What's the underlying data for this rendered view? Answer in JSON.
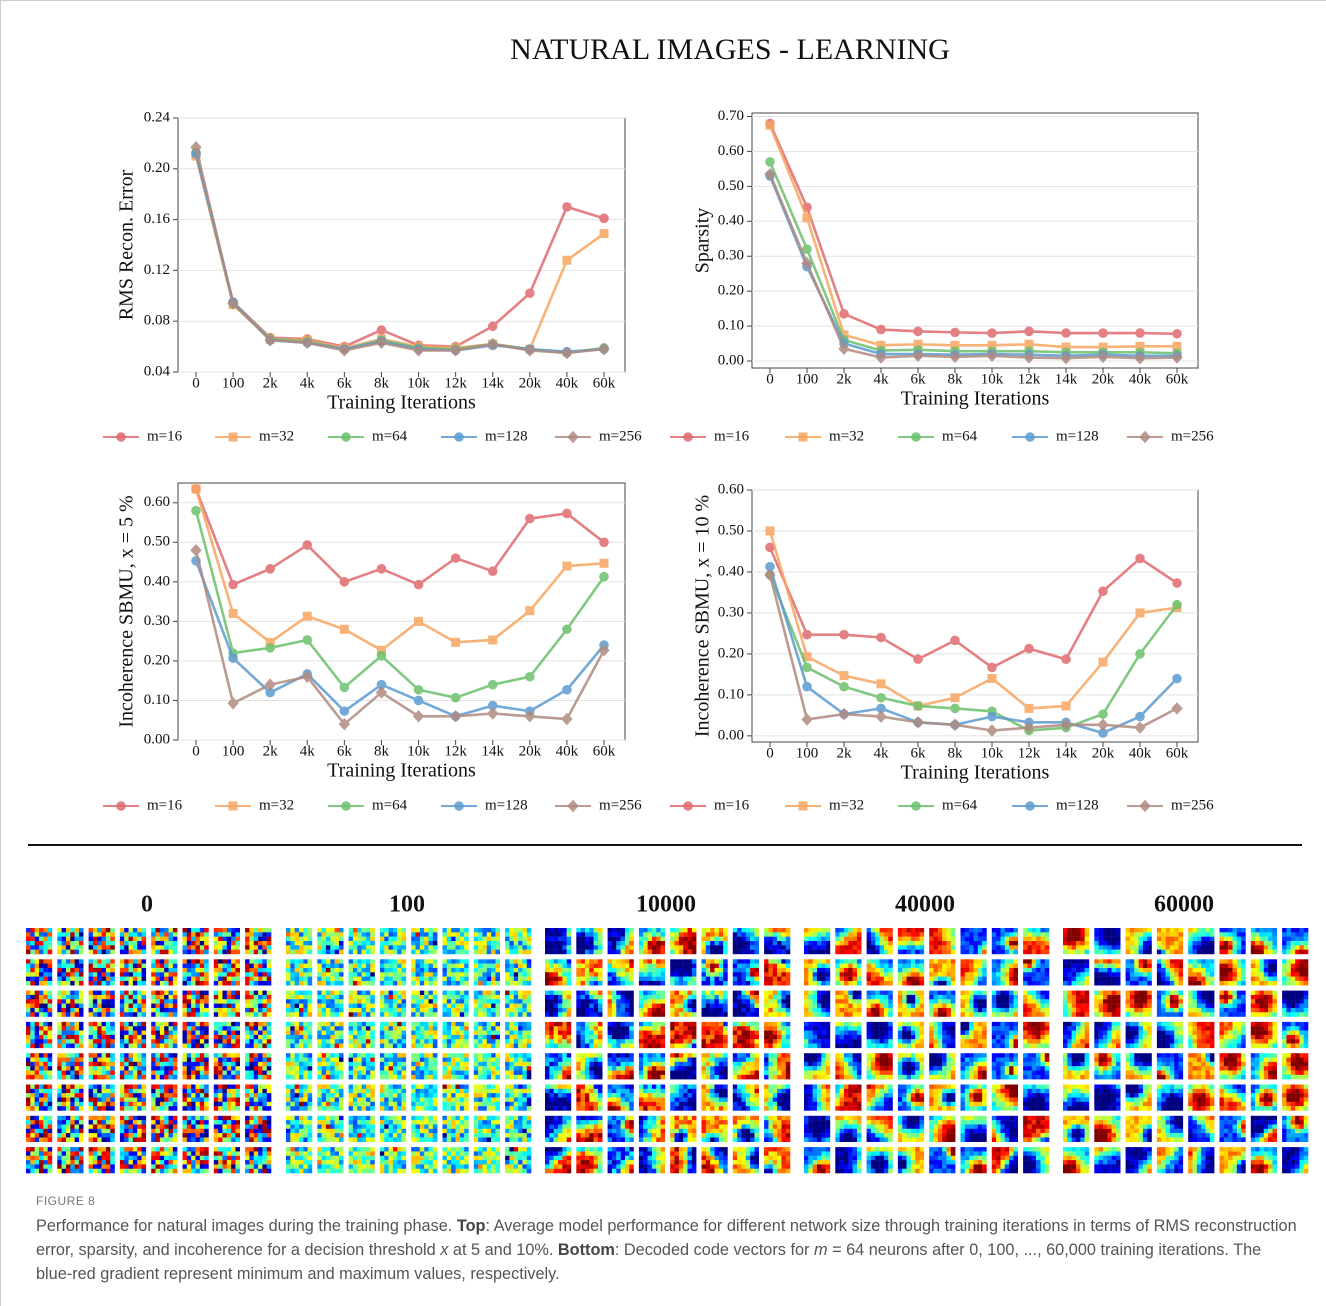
{
  "header": {
    "title": "NATURAL IMAGES - LEARNING"
  },
  "chart_data": [
    {
      "type": "line",
      "x_label": "Training Iterations",
      "y_label": "RMS Recon. Error",
      "categories": [
        "0",
        "100",
        "2k",
        "4k",
        "6k",
        "8k",
        "10k",
        "12k",
        "14k",
        "20k",
        "40k",
        "60k"
      ],
      "ylim": [
        0.04,
        0.24
      ],
      "yticks": [
        0.04,
        0.08,
        0.12,
        0.16,
        {
          "value": 0.2,
          "label": "0.20"
        },
        0.24
      ],
      "grid": true,
      "series": [
        {
          "name": "m=16",
          "color": "#e06a6e",
          "marker": "circle",
          "values": [
            0.211,
            0.095,
            0.067,
            0.066,
            0.06,
            0.073,
            0.061,
            0.06,
            0.076,
            0.102,
            0.17,
            0.161
          ]
        },
        {
          "name": "m=32",
          "color": "#f7a560",
          "marker": "square",
          "values": [
            0.21,
            0.093,
            0.066,
            0.065,
            0.059,
            0.066,
            0.06,
            0.059,
            0.062,
            0.058,
            0.128,
            0.149
          ]
        },
        {
          "name": "m=64",
          "color": "#6cc06c",
          "marker": "circle",
          "values": [
            0.213,
            0.094,
            0.066,
            0.064,
            0.058,
            0.065,
            0.059,
            0.058,
            0.062,
            0.058,
            0.055,
            0.059
          ]
        },
        {
          "name": "m=128",
          "color": "#5b9bd0",
          "marker": "circle",
          "values": [
            0.212,
            0.095,
            0.065,
            0.063,
            0.058,
            0.064,
            0.058,
            0.057,
            0.061,
            0.058,
            0.056,
            0.058
          ]
        },
        {
          "name": "m=256",
          "color": "#b08a80",
          "marker": "diamond",
          "values": [
            0.217,
            0.094,
            0.065,
            0.063,
            0.057,
            0.063,
            0.057,
            0.057,
            0.062,
            0.057,
            0.055,
            0.058
          ]
        }
      ]
    },
    {
      "type": "line",
      "x_label": "Training Iterations",
      "y_label": "Sparsity",
      "categories": [
        "0",
        "100",
        "2k",
        "4k",
        "6k",
        "8k",
        "10k",
        "12k",
        "14k",
        "20k",
        "40k",
        "60k"
      ],
      "ylim": [
        -0.02,
        0.71
      ],
      "yticks": [
        {
          "value": 0,
          "label": "0.00"
        },
        {
          "value": 0.1,
          "label": "0.10"
        },
        {
          "value": 0.2,
          "label": "0.20"
        },
        {
          "value": 0.3,
          "label": "0.30"
        },
        {
          "value": 0.4,
          "label": "0.40"
        },
        {
          "value": 0.5,
          "label": "0.50"
        },
        {
          "value": 0.6,
          "label": "0.60"
        },
        {
          "value": 0.7,
          "label": "0.70"
        }
      ],
      "grid": true,
      "series": [
        {
          "name": "m=16",
          "color": "#e06a6e",
          "marker": "circle",
          "values": [
            0.68,
            0.44,
            0.135,
            0.09,
            0.085,
            0.082,
            0.08,
            0.085,
            0.08,
            0.08,
            0.08,
            0.078
          ]
        },
        {
          "name": "m=32",
          "color": "#f7a560",
          "marker": "square",
          "values": [
            0.675,
            0.41,
            0.075,
            0.045,
            0.048,
            0.045,
            0.045,
            0.048,
            0.04,
            0.04,
            0.042,
            0.042
          ]
        },
        {
          "name": "m=64",
          "color": "#6cc06c",
          "marker": "circle",
          "values": [
            0.57,
            0.32,
            0.06,
            0.03,
            0.032,
            0.028,
            0.028,
            0.028,
            0.025,
            0.025,
            0.025,
            0.022
          ]
        },
        {
          "name": "m=128",
          "color": "#5b9bd0",
          "marker": "circle",
          "values": [
            0.53,
            0.27,
            0.05,
            0.02,
            0.02,
            0.018,
            0.02,
            0.018,
            0.015,
            0.018,
            0.015,
            0.015
          ]
        },
        {
          "name": "m=256",
          "color": "#b08a80",
          "marker": "diamond",
          "values": [
            0.535,
            0.28,
            0.035,
            0.01,
            0.015,
            0.012,
            0.015,
            0.01,
            0.008,
            0.012,
            0.008,
            0.01
          ]
        }
      ]
    },
    {
      "type": "line",
      "x_label": "Training Iterations",
      "y_label": "Incoherence SBMU, x = 5 %",
      "categories": [
        "0",
        "100",
        "2k",
        "4k",
        "6k",
        "8k",
        "10k",
        "12k",
        "14k",
        "20k",
        "40k",
        "60k"
      ],
      "ylim": [
        0,
        0.65
      ],
      "yticks": [
        {
          "value": 0,
          "label": "0.00"
        },
        {
          "value": 0.1,
          "label": "0.10"
        },
        {
          "value": 0.2,
          "label": "0.20"
        },
        {
          "value": 0.3,
          "label": "0.30"
        },
        {
          "value": 0.4,
          "label": "0.40"
        },
        {
          "value": 0.5,
          "label": "0.50"
        },
        {
          "value": 0.6,
          "label": "0.60"
        }
      ],
      "grid": true,
      "series": [
        {
          "name": "m=16",
          "color": "#e06a6e",
          "marker": "circle",
          "values": [
            0.635,
            0.393,
            0.433,
            0.493,
            0.4,
            0.433,
            0.393,
            0.46,
            0.427,
            0.56,
            0.573,
            0.5
          ]
        },
        {
          "name": "m=32",
          "color": "#f7a560",
          "marker": "square",
          "values": [
            0.635,
            0.32,
            0.247,
            0.313,
            0.28,
            0.227,
            0.3,
            0.247,
            0.253,
            0.327,
            0.44,
            0.447
          ]
        },
        {
          "name": "m=64",
          "color": "#6cc06c",
          "marker": "circle",
          "values": [
            0.58,
            0.22,
            0.233,
            0.253,
            0.133,
            0.213,
            0.127,
            0.107,
            0.14,
            0.16,
            0.28,
            0.413
          ]
        },
        {
          "name": "m=128",
          "color": "#5b9bd0",
          "marker": "circle",
          "values": [
            0.453,
            0.207,
            0.12,
            0.167,
            0.073,
            0.14,
            0.1,
            0.06,
            0.087,
            0.073,
            0.127,
            0.24
          ]
        },
        {
          "name": "m=256",
          "color": "#b08a80",
          "marker": "diamond",
          "values": [
            0.48,
            0.093,
            0.14,
            0.16,
            0.04,
            0.12,
            0.06,
            0.06,
            0.067,
            0.06,
            0.053,
            0.227
          ]
        }
      ]
    },
    {
      "type": "line",
      "x_label": "Training Iterations",
      "y_label": "Incoherence SBMU, x = 10 %",
      "categories": [
        "0",
        "100",
        "2k",
        "4k",
        "6k",
        "8k",
        "10k",
        "12k",
        "14k",
        "20k",
        "40k",
        "60k"
      ],
      "ylim": [
        -0.015,
        0.6
      ],
      "yticks": [
        {
          "value": 0,
          "label": "0.00"
        },
        {
          "value": 0.1,
          "label": "0.10"
        },
        {
          "value": 0.2,
          "label": "0.20"
        },
        {
          "value": 0.3,
          "label": "0.30"
        },
        {
          "value": 0.4,
          "label": "0.40"
        },
        {
          "value": 0.5,
          "label": "0.50"
        },
        {
          "value": 0.6,
          "label": "0.60"
        }
      ],
      "grid": true,
      "series": [
        {
          "name": "m=16",
          "color": "#e06a6e",
          "marker": "circle",
          "values": [
            0.46,
            0.247,
            0.247,
            0.24,
            0.187,
            0.233,
            0.167,
            0.213,
            0.187,
            0.353,
            0.433,
            0.373
          ]
        },
        {
          "name": "m=32",
          "color": "#f7a560",
          "marker": "square",
          "values": [
            0.5,
            0.193,
            0.147,
            0.127,
            0.073,
            0.093,
            0.14,
            0.067,
            0.073,
            0.18,
            0.3,
            0.313
          ]
        },
        {
          "name": "m=64",
          "color": "#6cc06c",
          "marker": "circle",
          "values": [
            0.393,
            0.167,
            0.12,
            0.093,
            0.073,
            0.067,
            0.06,
            0.013,
            0.02,
            0.053,
            0.2,
            0.32
          ]
        },
        {
          "name": "m=128",
          "color": "#5b9bd0",
          "marker": "circle",
          "values": [
            0.413,
            0.12,
            0.053,
            0.067,
            0.033,
            0.027,
            0.047,
            0.033,
            0.033,
            0.007,
            0.047,
            0.14
          ]
        },
        {
          "name": "m=256",
          "color": "#b08a80",
          "marker": "diamond",
          "values": [
            0.393,
            0.04,
            0.053,
            0.047,
            0.033,
            0.027,
            0.013,
            0.02,
            0.027,
            0.027,
            0.02,
            0.067
          ]
        }
      ]
    }
  ],
  "code_vectors": {
    "panels": [
      "0",
      "100",
      "10000",
      "40000",
      "60000"
    ]
  },
  "caption": {
    "label": "FIGURE 8",
    "text": [
      "Performance for natural images during the training phase. ",
      "Top",
      ": Average model performance for different network size through training iterations in terms of RMS reconstruction error, sparsity, and incoherence for a decision threshold ",
      "x",
      " at 5 and 10%. ",
      "Bottom",
      ": Decoded code vectors for ",
      "m",
      " = 64 neurons after 0, 100, ..., 60,000 training iterations. The blue-red gradient represent minimum and maximum values, respectively."
    ]
  }
}
